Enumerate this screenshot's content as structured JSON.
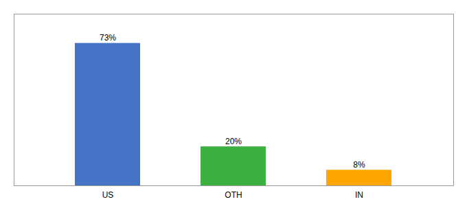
{
  "chart_data": {
    "type": "bar",
    "categories": [
      "US",
      "OTH",
      "IN"
    ],
    "values": [
      73,
      20,
      8
    ],
    "colors": [
      "#4472C4",
      "#3CB043",
      "#FFA500"
    ],
    "data_labels": true,
    "value_labels": [
      "73%",
      "20%",
      "8%"
    ],
    "ylim": [
      0,
      88
    ],
    "tick_labels": "x",
    "grid": false
  }
}
